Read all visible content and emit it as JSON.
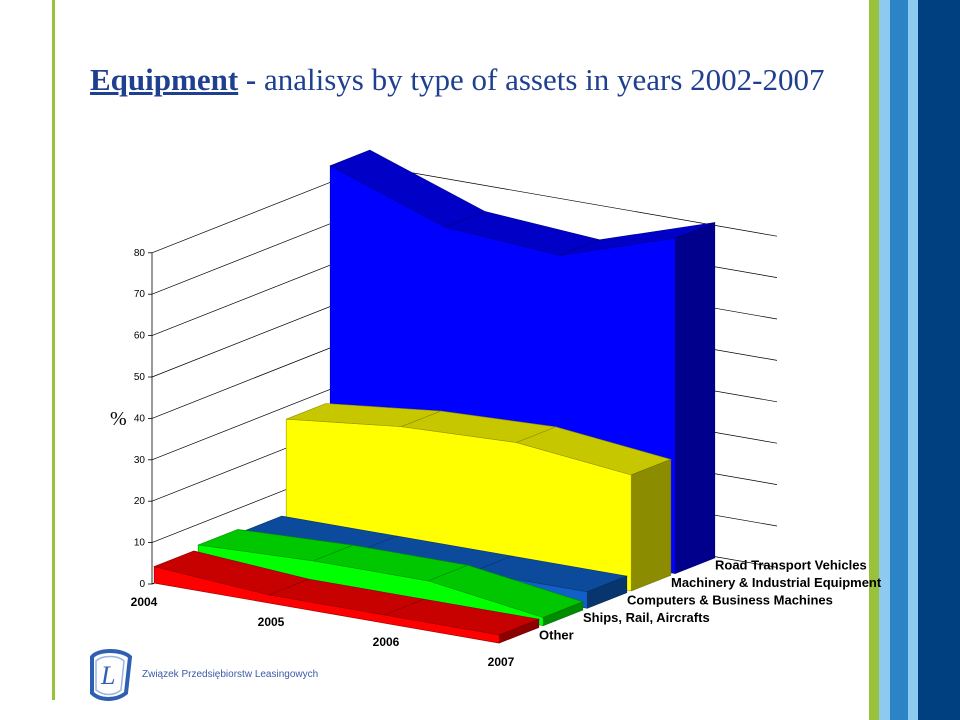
{
  "slide": {
    "title_keyword": "Equipment",
    "title_dash": " - ",
    "title_rest": "analisys by type of assets in years 2002-2007",
    "org_name": "Związek Przedsiębiorstw Leasingowych",
    "logo_icon": "leasing-association-logo-icon"
  },
  "colors": {
    "accent_green": "#99c23c",
    "stripe_dark_blue": "#003f80",
    "stripe_mid_blue": "#2a84c6",
    "stripe_light_blue": "#8ec9ef",
    "title_blue": "#1f3f91"
  },
  "chart_data": {
    "type": "area",
    "subtype": "3d-area",
    "title": "",
    "xlabel": "",
    "ylabel": "%",
    "ylim": [
      0,
      80
    ],
    "yticks": [
      "0",
      "10",
      "20",
      "30",
      "40",
      "50",
      "60",
      "70",
      "80"
    ],
    "categories": [
      "2004",
      "2005",
      "2006",
      "2007"
    ],
    "grid": true,
    "legend": "none",
    "series": [
      {
        "name": "Road Transport Vehicles",
        "values": [
          84,
          74,
          72,
          81
        ],
        "color": "#0000ff"
      },
      {
        "name": "Machinery & Industrial Equipment",
        "values": [
          27,
          30,
          31,
          28
        ],
        "color": "#ffff00"
      },
      {
        "name": "Computers & Business Machines",
        "values": [
          4,
          4,
          4,
          4
        ],
        "color": "#1060c8"
      },
      {
        "name": "Ships, Rail, Aircrafts",
        "values": [
          5,
          6,
          6,
          2
        ],
        "color": "#00ff00"
      },
      {
        "name": "Other",
        "values": [
          4,
          2,
          2,
          2
        ],
        "color": "#ff0000"
      }
    ]
  }
}
